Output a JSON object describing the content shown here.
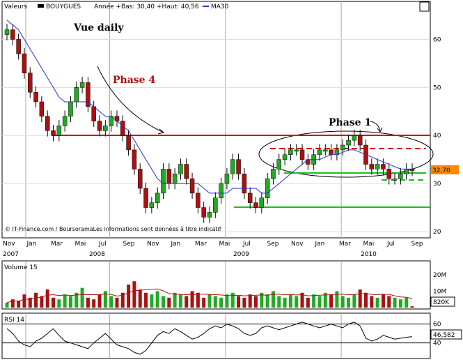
{
  "header": {
    "label": "Valeurs",
    "ticker": "BOUYGUES",
    "stats": "Année +Bas: 30,40 +Haut: 40,56",
    "ma_label": "MA30"
  },
  "colors": {
    "up": "#22aa22",
    "down": "#aa1111",
    "ma": "#2233cc",
    "resistance": "#cc1111",
    "support": "#22bb22",
    "grid": "#aaaaaa",
    "price_badge": "#ff8800"
  },
  "annotations": {
    "vue": "Vue daily",
    "phase4": "Phase 4",
    "phase1": "Phase 1",
    "copyright": "© IT-Finance.com / BoursoramaLes informations sont données à titre indicatif"
  },
  "x_axis": {
    "months": [
      "Nov",
      "Jan",
      "Mar",
      "Mai",
      "Jul",
      "Sep",
      "Nov",
      "Jan",
      "Mar",
      "Mai",
      "Jul",
      "Sep",
      "Nov",
      "Jan",
      "Mar",
      "Mai",
      "Jul",
      "Sep"
    ],
    "years": [
      "2007",
      "2008",
      "2009",
      "2010"
    ]
  },
  "chart_data": [
    {
      "type": "line",
      "panel": "price",
      "ylim": [
        20,
        65
      ],
      "yticks": [
        "20",
        "30",
        "40",
        "50",
        "60"
      ],
      "last_price": "32,70",
      "x": [
        0,
        1,
        2,
        3,
        4,
        5,
        6,
        7,
        8,
        9,
        10,
        11,
        12,
        13,
        14,
        15,
        16,
        17,
        18,
        19,
        20,
        21,
        22,
        23,
        24,
        25,
        26,
        27,
        28,
        29,
        30,
        31,
        32,
        33,
        34,
        35,
        36,
        37,
        38,
        39,
        40,
        41,
        42,
        43,
        44,
        45,
        46,
        47,
        48,
        49,
        50,
        51,
        52,
        53,
        54,
        55,
        56,
        57,
        58,
        59,
        60,
        61,
        62,
        63,
        64,
        65,
        66,
        67,
        68,
        69,
        70
      ],
      "series": [
        {
          "name": "BOUYGUES",
          "values": [
            62,
            60,
            57,
            53,
            49,
            47,
            44,
            41,
            40,
            42,
            44,
            47,
            50,
            51,
            46,
            43,
            41,
            42,
            44,
            43,
            40,
            37,
            33,
            29,
            25,
            26,
            28,
            33,
            30,
            32,
            34,
            31,
            28,
            25,
            23,
            24,
            27,
            30,
            32,
            35,
            32,
            28,
            26,
            25,
            27,
            31,
            33,
            35,
            36,
            37,
            37,
            35,
            34,
            36,
            37,
            37,
            36,
            37,
            38,
            39,
            40,
            38,
            34,
            33,
            34,
            33,
            31,
            31,
            32,
            33,
            32.7
          ]
        },
        {
          "name": "MA30",
          "values": [
            64,
            63,
            62,
            60,
            58,
            56,
            54,
            52,
            50,
            48,
            47,
            47,
            47,
            47,
            47,
            46,
            45,
            44,
            44,
            43,
            42,
            41,
            39,
            37,
            35,
            33,
            31,
            30,
            30,
            30,
            30,
            30,
            30,
            30,
            29,
            28,
            28,
            28,
            28,
            29,
            29,
            29,
            29,
            29,
            28,
            28,
            29,
            30,
            31,
            32,
            33,
            34,
            35,
            35,
            35,
            35.5,
            36,
            36,
            36.5,
            37,
            37,
            36.5,
            36,
            35.5,
            35,
            34.5,
            34,
            33.5,
            33,
            33,
            33
          ]
        }
      ]
    },
    {
      "type": "bar",
      "panel": "volume",
      "title": "Volume 15",
      "yticks": [
        "10M",
        "20M"
      ],
      "ylim": [
        0,
        25
      ],
      "last_value": "820K",
      "values": [
        3,
        5,
        4,
        8,
        6,
        9,
        7,
        11,
        6,
        5,
        8,
        7,
        9,
        12,
        6,
        5,
        8,
        10,
        7,
        6,
        9,
        14,
        16,
        11,
        9,
        8,
        10,
        7,
        6,
        9,
        8,
        7,
        10,
        9,
        6,
        8,
        7,
        6,
        8,
        9,
        7,
        6,
        8,
        7,
        9,
        8,
        10,
        7,
        6,
        8,
        7,
        9,
        6,
        8,
        7,
        9,
        8,
        10,
        7,
        6,
        8,
        11,
        9,
        7,
        6,
        8,
        7,
        6,
        5,
        6,
        0.8
      ]
    },
    {
      "type": "line",
      "panel": "rsi",
      "title": "RSI 14",
      "yticks": [
        "40",
        "60"
      ],
      "ylim": [
        25,
        70
      ],
      "last_value": "46,582",
      "values": [
        55,
        50,
        42,
        38,
        36,
        42,
        45,
        50,
        55,
        48,
        42,
        40,
        38,
        36,
        34,
        40,
        45,
        50,
        44,
        38,
        36,
        34,
        30,
        28,
        32,
        40,
        48,
        52,
        50,
        55,
        52,
        48,
        44,
        46,
        50,
        55,
        58,
        56,
        60,
        58,
        55,
        50,
        48,
        50,
        56,
        58,
        56,
        54,
        56,
        58,
        60,
        62,
        60,
        58,
        56,
        58,
        60,
        58,
        56,
        60,
        62,
        58,
        45,
        42,
        44,
        48,
        46,
        44,
        45,
        46,
        46.6
      ]
    }
  ]
}
